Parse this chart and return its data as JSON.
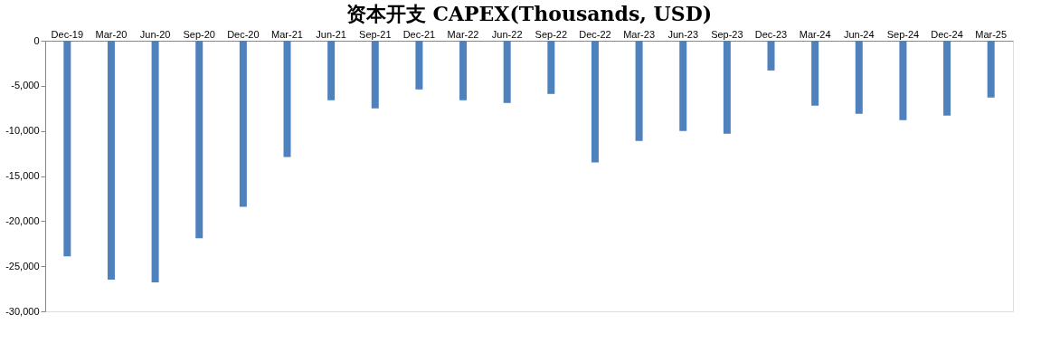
{
  "chart_data": {
    "type": "bar",
    "title": "资本开支 CAPEX(Thousands, USD)",
    "categories": [
      "Dec-19",
      "Mar-20",
      "Jun-20",
      "Sep-20",
      "Dec-20",
      "Mar-21",
      "Jun-21",
      "Sep-21",
      "Dec-21",
      "Mar-22",
      "Jun-22",
      "Sep-22",
      "Dec-22",
      "Mar-23",
      "Jun-23",
      "Sep-23",
      "Dec-23",
      "Mar-24",
      "Jun-24",
      "Sep-24",
      "Dec-24",
      "Mar-25"
    ],
    "series": [
      {
        "color": "#4f81bd",
        "values": [
          -23900,
          -26500,
          -26800,
          -21900,
          -18400,
          -12900,
          -6600,
          -7500,
          -5400,
          -6600,
          -6900,
          -5900,
          -13500,
          -11100,
          -10000,
          -10300,
          -3300,
          -7200,
          -8100,
          -8800,
          -8300,
          -6300
        ]
      }
    ],
    "ylim": [
      -30000,
      0
    ],
    "yticks": [
      {
        "value": -30000,
        "label": "-30,000"
      },
      {
        "value": -25000,
        "label": "-25,000"
      },
      {
        "value": -20000,
        "label": "-20,000"
      },
      {
        "value": -15000,
        "label": "-15,000"
      },
      {
        "value": -10000,
        "label": "-10,000"
      },
      {
        "value": -5000,
        "label": "-5,000"
      },
      0
    ],
    "grid": false
  }
}
